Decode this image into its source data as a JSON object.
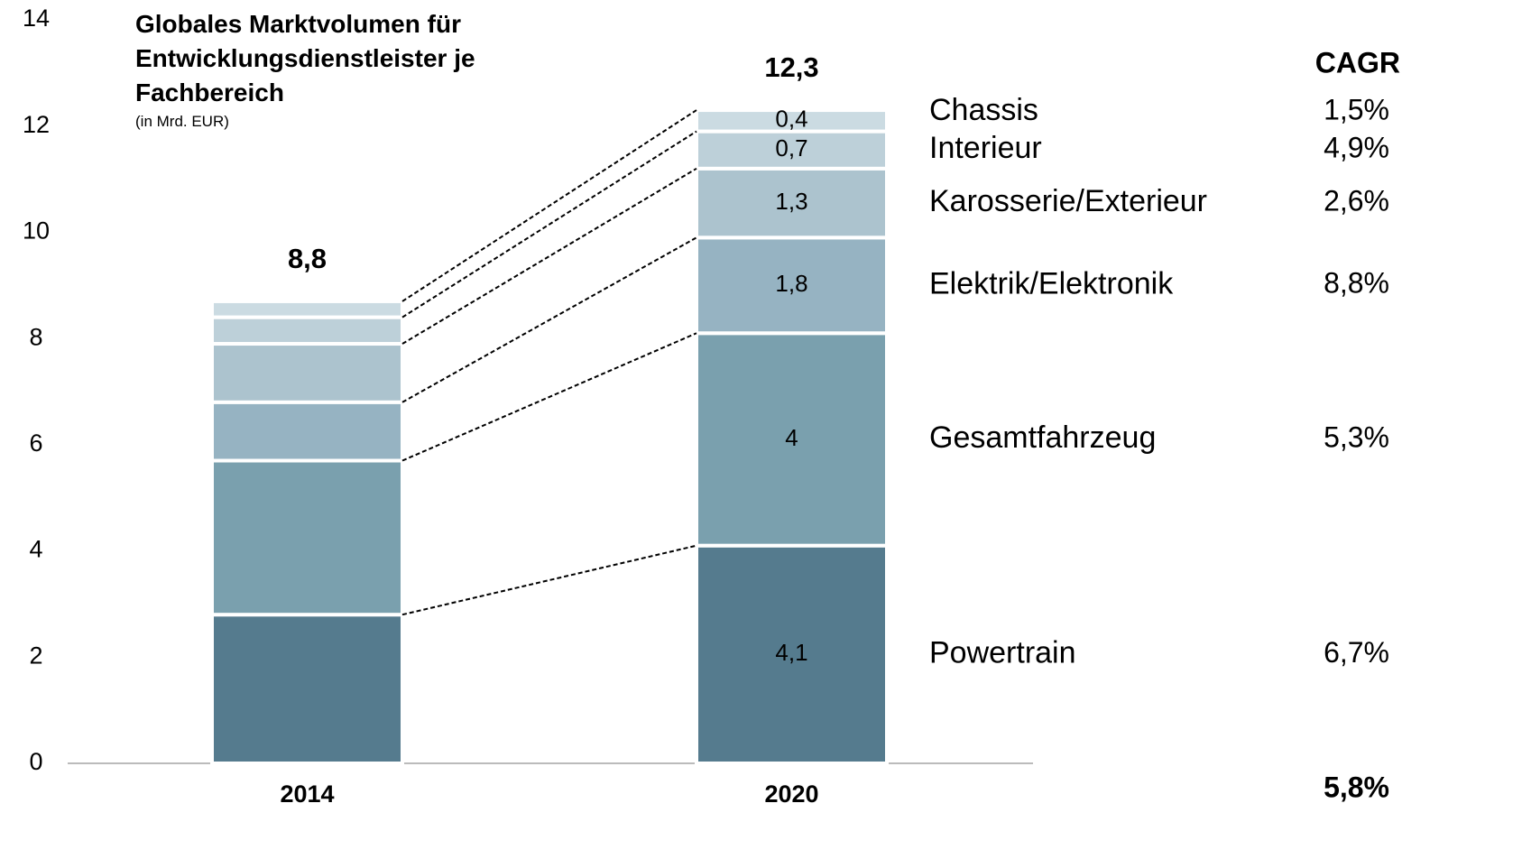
{
  "chart_data": {
    "type": "stacked_bar",
    "title": "Globales Marktvolumen für Entwicklungsdienstleister je Fachbereich",
    "subtitle": "(in Mrd. EUR)",
    "categories": [
      "2014",
      "2020"
    ],
    "series": [
      {
        "name": "Powertrain",
        "color": "#557b8e",
        "values": [
          2.8,
          4.1
        ],
        "value_labels": [
          null,
          "4,1"
        ],
        "cagr": "6,7%"
      },
      {
        "name": "Gesamtfahrzeug",
        "color": "#7aa0ae",
        "values": [
          2.9,
          4
        ],
        "value_labels": [
          null,
          "4"
        ],
        "cagr": "5,3%"
      },
      {
        "name": "Elektrik/Elektronik",
        "color": "#96b3c2",
        "values": [
          1.1,
          1.8
        ],
        "value_labels": [
          null,
          "1,8"
        ],
        "cagr": "8,8%"
      },
      {
        "name": "Karosserie/Exterieur",
        "color": "#acc3ce",
        "values": [
          1.1,
          1.3
        ],
        "value_labels": [
          null,
          "1,3"
        ],
        "cagr": "2,6%"
      },
      {
        "name": "Interieur",
        "color": "#bdd0d9",
        "values": [
          0.5,
          0.7
        ],
        "value_labels": [
          null,
          "0,7"
        ],
        "cagr": "4,9%"
      },
      {
        "name": "Chassis",
        "color": "#cbdbe2",
        "values": [
          0.3,
          0.4
        ],
        "value_labels": [
          null,
          "0,4"
        ],
        "cagr": "1,5%"
      }
    ],
    "totals": [
      8.8,
      12.3
    ],
    "total_labels": [
      "8,8",
      "12,3"
    ],
    "cagr_heading": "CAGR",
    "cagr_total": "5,8%",
    "ylim": [
      0,
      14
    ],
    "yticks": [
      0,
      2,
      4,
      6,
      8,
      10,
      12,
      14
    ]
  }
}
